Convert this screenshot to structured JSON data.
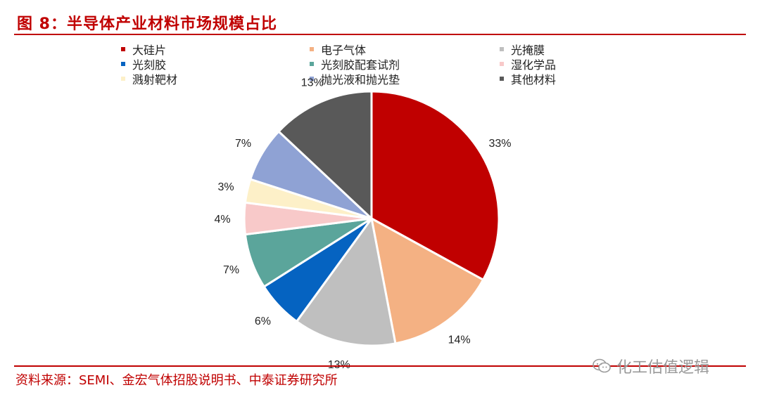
{
  "header": {
    "title": "图 8：半导体产业材料市场规模占比"
  },
  "chart_data": {
    "type": "pie",
    "categories": [
      "大硅片",
      "电子气体",
      "光掩膜",
      "光刻胶",
      "光刻胶配套试剂",
      "湿化学品",
      "溅射靶材",
      "抛光液和抛光垫",
      "其他材料"
    ],
    "values": [
      33,
      14,
      13,
      6,
      7,
      4,
      3,
      7,
      13
    ],
    "labels": [
      "33%",
      "14%",
      "13%",
      "6%",
      "7%",
      "4%",
      "3%",
      "7%",
      "13%"
    ],
    "colors": [
      "#c00000",
      "#f4b183",
      "#bfbfbf",
      "#0563c1",
      "#5ba59b",
      "#f8c9c9",
      "#fdf0c8",
      "#8fa2d4",
      "#595959"
    ],
    "legend_placement": "top"
  },
  "footer": {
    "source": "资料来源：SEMI、金宏气体招股说明书、中泰证券研究所",
    "watermark": "化工估值逻辑"
  }
}
